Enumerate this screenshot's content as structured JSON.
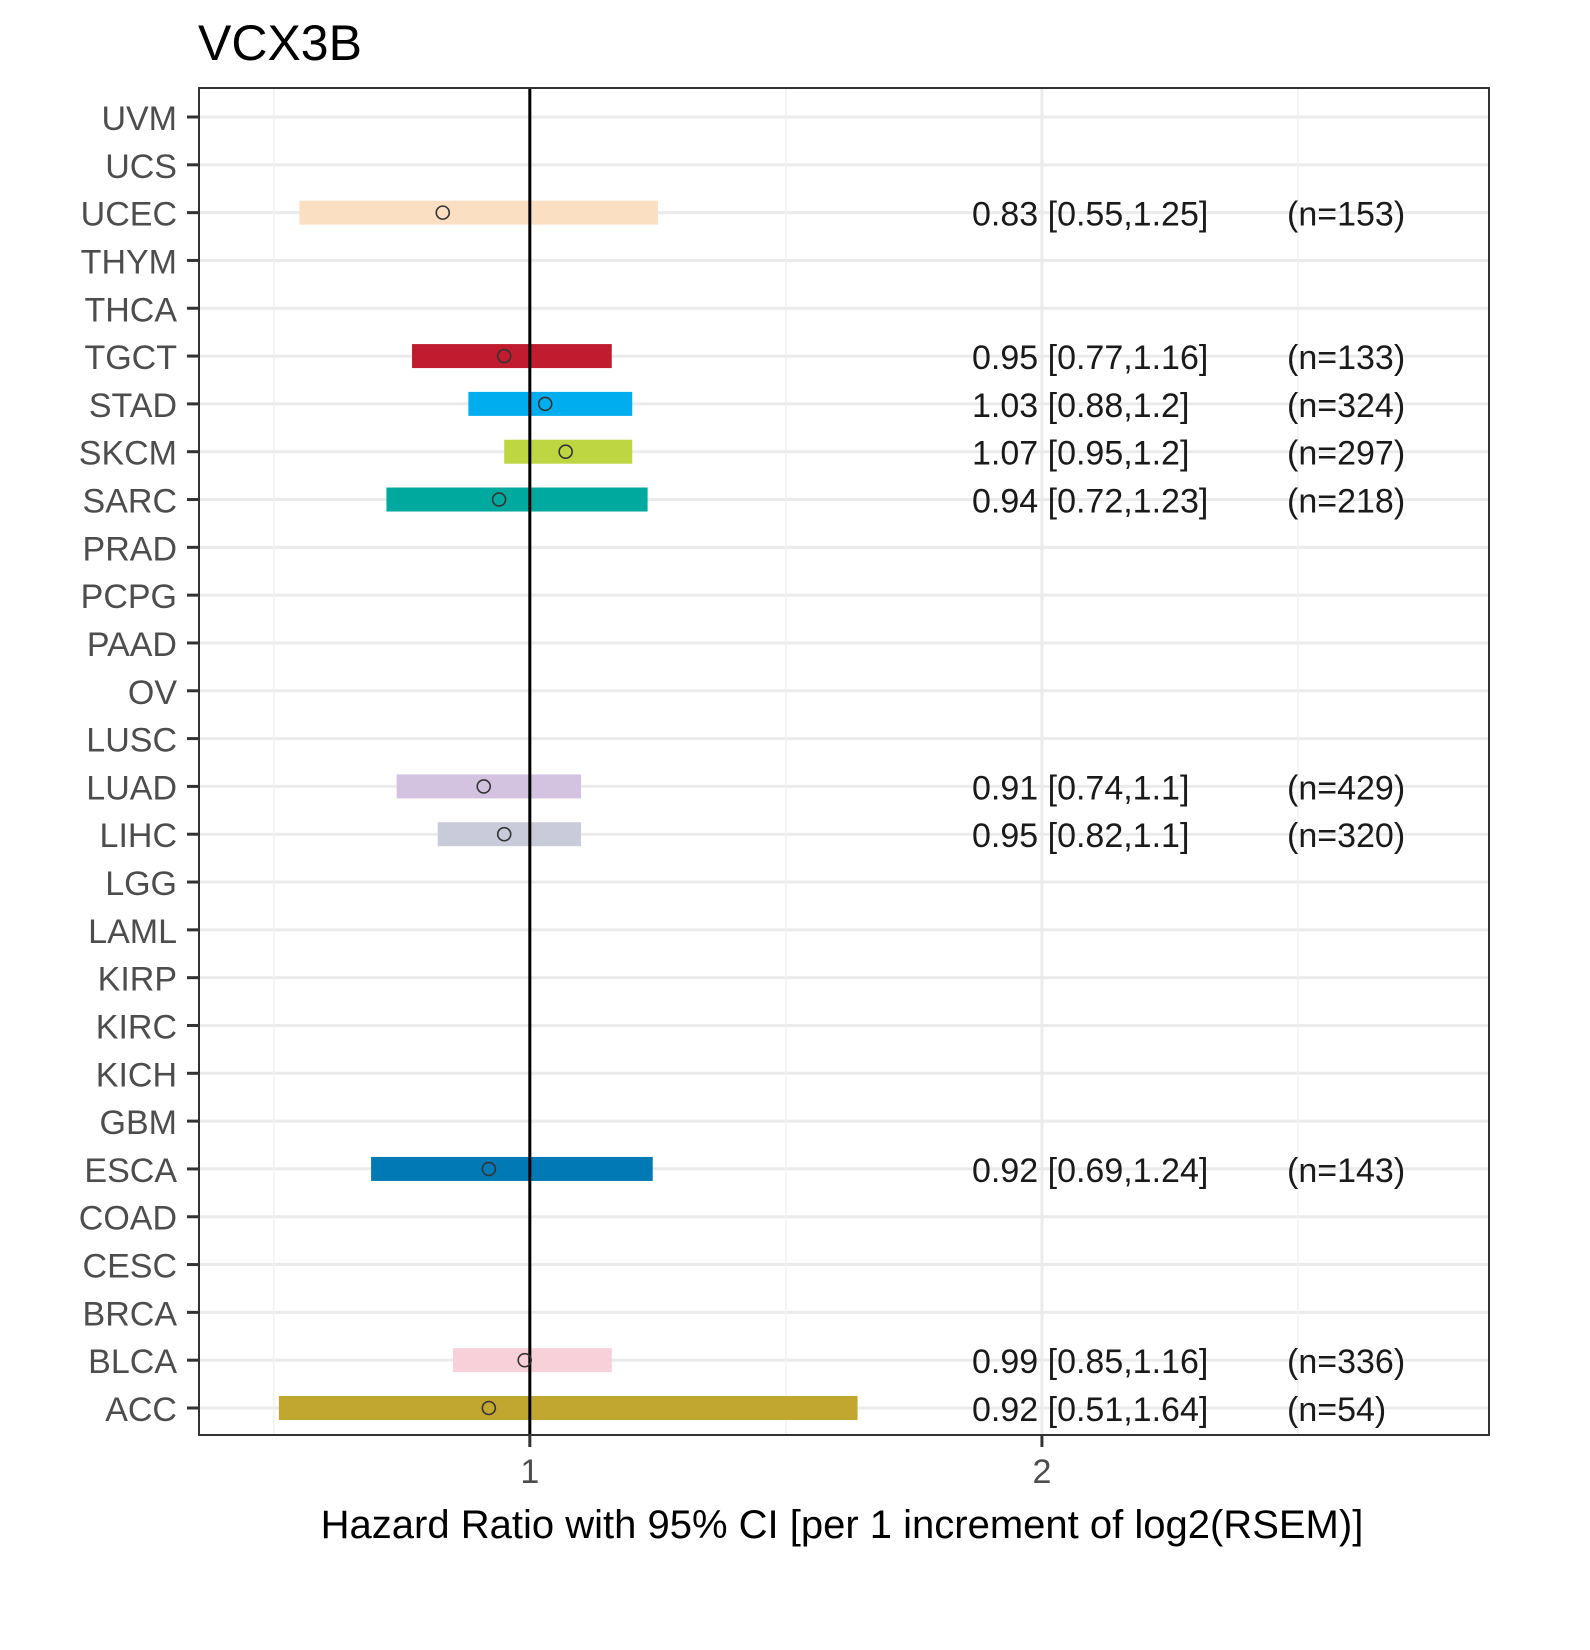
{
  "chart_data": {
    "type": "forest",
    "title": "VCX3B",
    "xlabel": "Hazard Ratio with 95% CI [per 1 increment of log2(RSEM)]",
    "ylabel": "",
    "xlim": [
      0.354,
      2.873
    ],
    "x_ticks": [
      1,
      2
    ],
    "x_tick_labels": [
      "1",
      "2"
    ],
    "reference_line": 1,
    "grid": true,
    "categories": [
      "UVM",
      "UCS",
      "UCEC",
      "THYM",
      "THCA",
      "TGCT",
      "STAD",
      "SKCM",
      "SARC",
      "PRAD",
      "PCPG",
      "PAAD",
      "OV",
      "LUSC",
      "LUAD",
      "LIHC",
      "LGG",
      "LAML",
      "KIRP",
      "KIRC",
      "KICH",
      "GBM",
      "ESCA",
      "COAD",
      "CESC",
      "BRCA",
      "BLCA",
      "ACC"
    ],
    "series": [
      {
        "name": "UCEC",
        "hr": 0.83,
        "lo": 0.55,
        "hi": 1.25,
        "label": "0.83 [0.55,1.25]",
        "n": "(n=153)",
        "color": "#FADFC3"
      },
      {
        "name": "TGCT",
        "hr": 0.95,
        "lo": 0.77,
        "hi": 1.16,
        "label": "0.95 [0.77,1.16]",
        "n": "(n=133)",
        "color": "#C01B2E"
      },
      {
        "name": "STAD",
        "hr": 1.03,
        "lo": 0.88,
        "hi": 1.2,
        "label": "1.03 [0.88,1.2]",
        "n": "(n=324)",
        "color": "#00AEEF"
      },
      {
        "name": "SKCM",
        "hr": 1.07,
        "lo": 0.95,
        "hi": 1.2,
        "label": "1.07 [0.95,1.2]",
        "n": "(n=297)",
        "color": "#BDD642"
      },
      {
        "name": "SARC",
        "hr": 0.94,
        "lo": 0.72,
        "hi": 1.23,
        "label": "0.94 [0.72,1.23]",
        "n": "(n=218)",
        "color": "#00A99D"
      },
      {
        "name": "LUAD",
        "hr": 0.91,
        "lo": 0.74,
        "hi": 1.1,
        "label": "0.91 [0.74,1.1]",
        "n": "(n=429)",
        "color": "#D3C3E0"
      },
      {
        "name": "LIHC",
        "hr": 0.95,
        "lo": 0.82,
        "hi": 1.1,
        "label": "0.95 [0.82,1.1]",
        "n": "(n=320)",
        "color": "#CACBDA"
      },
      {
        "name": "ESCA",
        "hr": 0.92,
        "lo": 0.69,
        "hi": 1.24,
        "label": "0.92 [0.69,1.24]",
        "n": "(n=143)",
        "color": "#0079B5"
      },
      {
        "name": "BLCA",
        "hr": 0.99,
        "lo": 0.85,
        "hi": 1.16,
        "label": "0.99 [0.85,1.16]",
        "n": "(n=336)",
        "color": "#F8D0D9"
      },
      {
        "name": "ACC",
        "hr": 0.92,
        "lo": 0.51,
        "hi": 1.64,
        "label": "0.92 [0.51,1.64]",
        "n": "(n=54)",
        "color": "#C1A62F"
      }
    ]
  }
}
